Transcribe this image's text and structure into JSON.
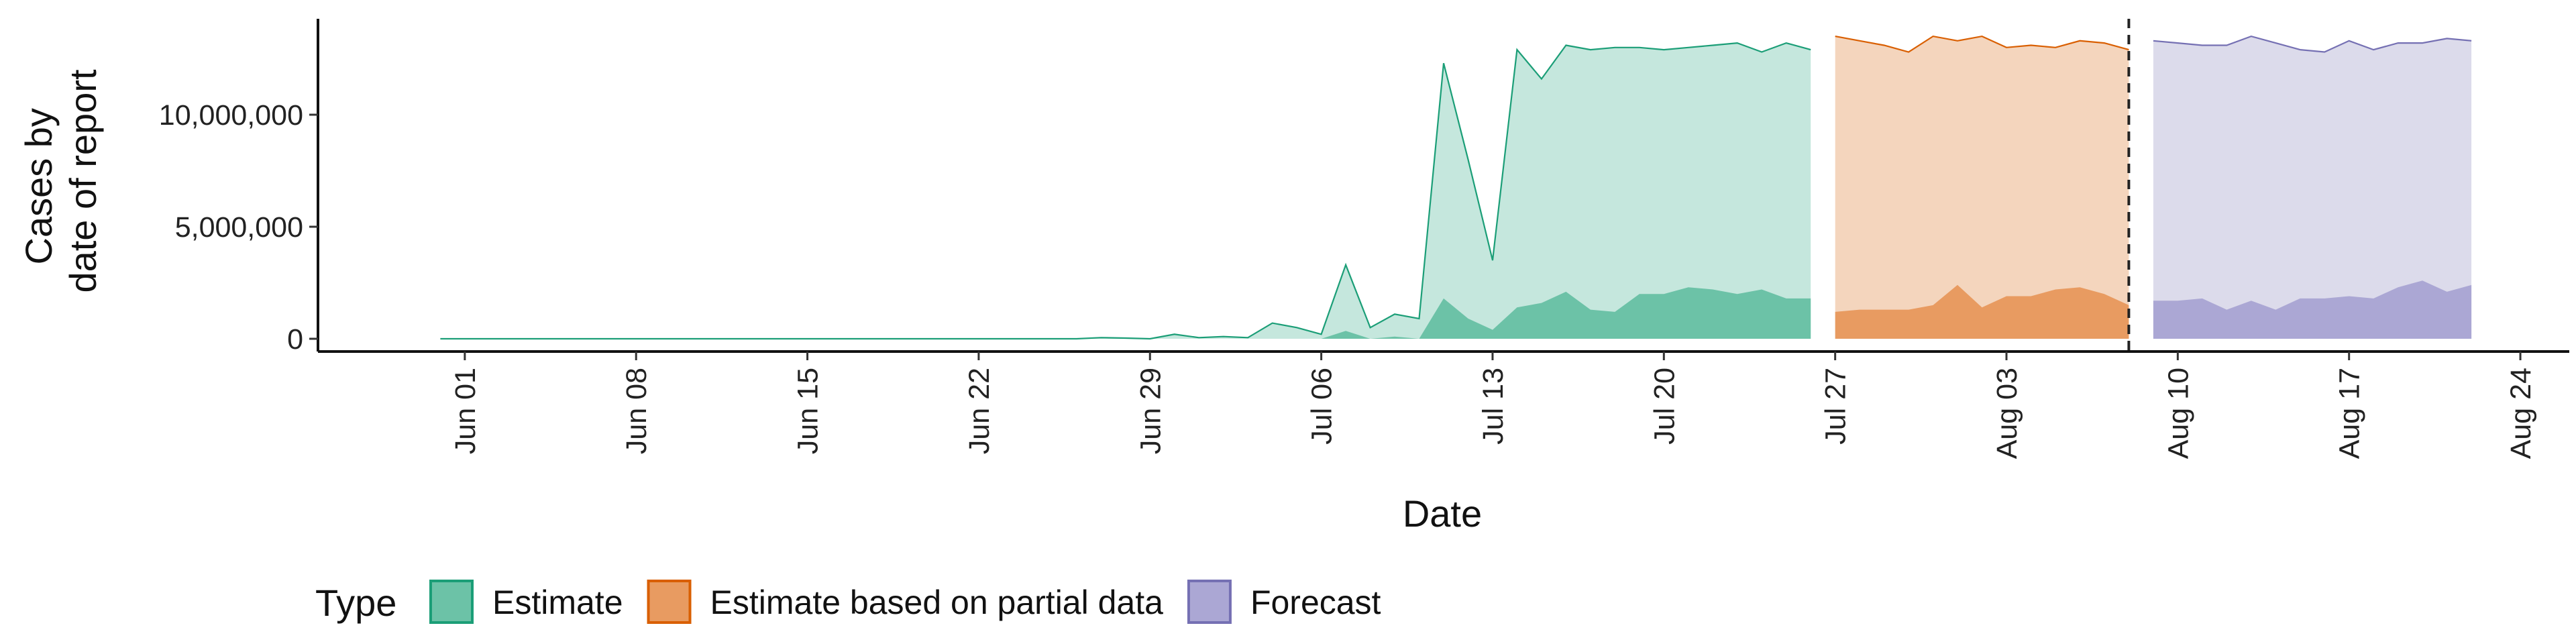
{
  "chart_data": {
    "type": "area",
    "title": "",
    "xlabel": "Date",
    "ylabel": [
      "Cases by",
      "date of report"
    ],
    "x_start": "2020-05-30",
    "ylim": [
      0,
      14300000
    ],
    "y_ticks": [
      {
        "value": 0,
        "label": "0"
      },
      {
        "value": 5000000,
        "label": "5,000,000"
      },
      {
        "value": 10000000,
        "label": "10,000,000"
      }
    ],
    "x_ticks": [
      {
        "date": "2020-06-01",
        "label": "Jun 01"
      },
      {
        "date": "2020-06-08",
        "label": "Jun 08"
      },
      {
        "date": "2020-06-15",
        "label": "Jun 15"
      },
      {
        "date": "2020-06-22",
        "label": "Jun 22"
      },
      {
        "date": "2020-06-29",
        "label": "Jun 29"
      },
      {
        "date": "2020-07-06",
        "label": "Jul 06"
      },
      {
        "date": "2020-07-13",
        "label": "Jul 13"
      },
      {
        "date": "2020-07-20",
        "label": "Jul 20"
      },
      {
        "date": "2020-07-27",
        "label": "Jul 27"
      },
      {
        "date": "2020-08-03",
        "label": "Aug 03"
      },
      {
        "date": "2020-08-10",
        "label": "Aug 10"
      },
      {
        "date": "2020-08-17",
        "label": "Aug 17"
      },
      {
        "date": "2020-08-24",
        "label": "Aug 24"
      }
    ],
    "xlim": [
      "2020-05-26",
      "2020-08-26"
    ],
    "vline_date": "2020-08-08",
    "grid": false,
    "legend": {
      "title": "Type",
      "position": "bottom"
    },
    "series": [
      {
        "name": "Estimate",
        "color": "#1b9e77",
        "fill": "#6cc2a7",
        "ribbon_fill": "#c5e7dd",
        "dates": [
          "2020-05-31",
          "2020-06-01",
          "2020-06-02",
          "2020-06-03",
          "2020-06-04",
          "2020-06-05",
          "2020-06-06",
          "2020-06-07",
          "2020-06-08",
          "2020-06-09",
          "2020-06-10",
          "2020-06-11",
          "2020-06-12",
          "2020-06-13",
          "2020-06-14",
          "2020-06-15",
          "2020-06-16",
          "2020-06-17",
          "2020-06-18",
          "2020-06-19",
          "2020-06-20",
          "2020-06-21",
          "2020-06-22",
          "2020-06-23",
          "2020-06-24",
          "2020-06-25",
          "2020-06-26",
          "2020-06-27",
          "2020-06-28",
          "2020-06-29",
          "2020-06-30",
          "2020-07-01",
          "2020-07-02",
          "2020-07-03",
          "2020-07-04",
          "2020-07-05",
          "2020-07-06",
          "2020-07-07",
          "2020-07-08",
          "2020-07-09",
          "2020-07-10",
          "2020-07-11",
          "2020-07-12",
          "2020-07-13",
          "2020-07-14",
          "2020-07-15",
          "2020-07-16",
          "2020-07-17",
          "2020-07-18",
          "2020-07-19",
          "2020-07-20",
          "2020-07-21",
          "2020-07-22",
          "2020-07-23",
          "2020-07-24",
          "2020-07-25",
          "2020-07-26"
        ],
        "upper": [
          0,
          0,
          0,
          0,
          0,
          0,
          0,
          0,
          0,
          0,
          0,
          0,
          0,
          0,
          0,
          0,
          0,
          0,
          0,
          0,
          0,
          0,
          0,
          0,
          0,
          0,
          0,
          50000,
          30000,
          0,
          200000,
          50000,
          100000,
          50000,
          700000,
          500000,
          200000,
          3300000,
          500000,
          1100000,
          900000,
          12300000,
          8000000,
          3500000,
          12900000,
          11600000,
          13100000,
          12900000,
          13000000,
          13000000,
          12900000,
          13000000,
          13100000,
          13200000,
          12800000,
          13200000,
          12900000
        ],
        "lower": [
          0,
          0,
          0,
          0,
          0,
          0,
          0,
          0,
          0,
          0,
          0,
          0,
          0,
          0,
          0,
          0,
          0,
          0,
          0,
          0,
          0,
          0,
          0,
          0,
          0,
          0,
          0,
          0,
          0,
          0,
          0,
          0,
          0,
          0,
          0,
          0,
          0,
          350000,
          0,
          100000,
          0,
          1800000,
          900000,
          400000,
          1400000,
          1600000,
          2100000,
          1300000,
          1200000,
          2000000,
          2000000,
          2300000,
          2200000,
          2000000,
          2200000,
          1800000,
          1800000
        ]
      },
      {
        "name": "Estimate based on partial data",
        "color": "#d95f02",
        "fill": "#e89b61",
        "ribbon_fill": "#f4d5bd",
        "dates": [
          "2020-07-27",
          "2020-07-28",
          "2020-07-29",
          "2020-07-30",
          "2020-07-31",
          "2020-08-01",
          "2020-08-02",
          "2020-08-03",
          "2020-08-04",
          "2020-08-05",
          "2020-08-06",
          "2020-08-07",
          "2020-08-08"
        ],
        "upper": [
          13500000,
          13300000,
          13100000,
          12800000,
          13500000,
          13300000,
          13500000,
          13000000,
          13100000,
          13000000,
          13300000,
          13200000,
          12900000
        ],
        "lower": [
          1200000,
          1300000,
          1300000,
          1300000,
          1500000,
          2400000,
          1400000,
          1900000,
          1900000,
          2200000,
          2300000,
          2000000,
          1500000
        ]
      },
      {
        "name": "Forecast",
        "color": "#7570b3",
        "fill": "#aba7d4",
        "ribbon_fill": "#dcdbeb",
        "dates": [
          "2020-08-09",
          "2020-08-10",
          "2020-08-11",
          "2020-08-12",
          "2020-08-13",
          "2020-08-14",
          "2020-08-15",
          "2020-08-16",
          "2020-08-17",
          "2020-08-18",
          "2020-08-19",
          "2020-08-20",
          "2020-08-21",
          "2020-08-22"
        ],
        "upper": [
          13300000,
          13200000,
          13100000,
          13100000,
          13500000,
          13200000,
          12900000,
          12800000,
          13300000,
          12900000,
          13200000,
          13200000,
          13400000,
          13300000
        ],
        "lower": [
          1700000,
          1700000,
          1800000,
          1300000,
          1700000,
          1300000,
          1800000,
          1800000,
          1900000,
          1800000,
          2300000,
          2600000,
          2100000,
          2400000
        ]
      }
    ]
  }
}
